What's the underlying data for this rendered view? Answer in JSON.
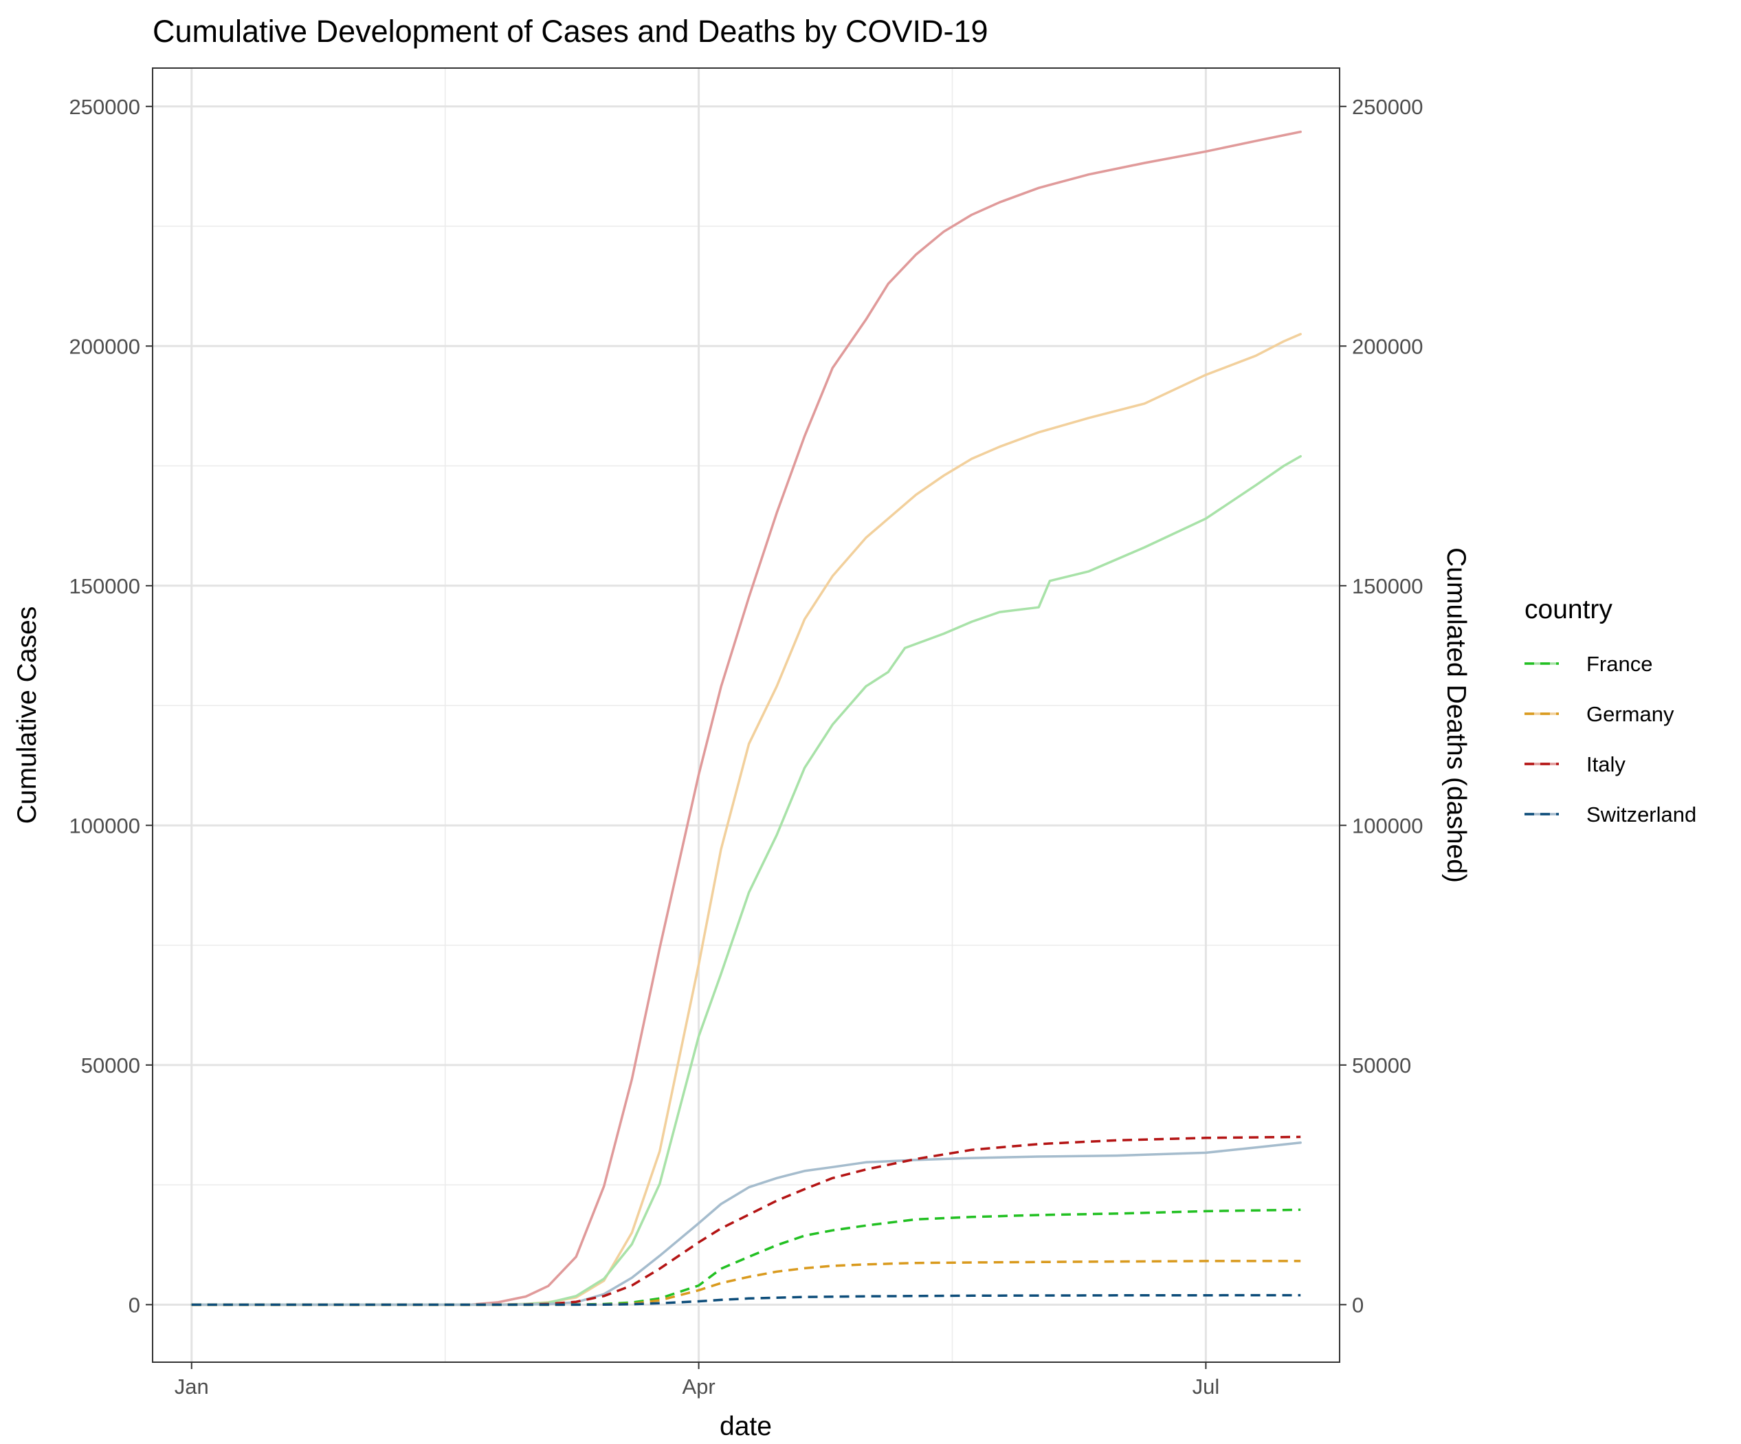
{
  "chart_data": {
    "type": "line",
    "title": "Cumulative Development of Cases and Deaths by COVID-19",
    "xlabel": "date",
    "ylabel": "Cumulative Cases",
    "y2label": "Cumulated Deaths (dashed)",
    "x_ticks": [
      {
        "label": "Jan",
        "date": "2020-01-01"
      },
      {
        "label": "Apr",
        "date": "2020-04-01"
      },
      {
        "label": "Jul",
        "date": "2020-07-01"
      }
    ],
    "x_range": [
      "2019-12-25",
      "2020-07-25"
    ],
    "ylim": [
      -12000,
      258000
    ],
    "y_ticks": [
      0,
      50000,
      100000,
      150000,
      200000,
      250000
    ],
    "y2_ticks": [
      0,
      50000,
      100000,
      150000,
      200000,
      250000
    ],
    "grid": true,
    "legend": {
      "title": "country",
      "position": "right",
      "entries": [
        "France",
        "Germany",
        "Italy",
        "Switzerland"
      ]
    },
    "colors": {
      "France": "#22c022",
      "Germany": "#d99a1e",
      "Italy": "#b41414",
      "Switzerland": "#0d4d7a",
      "France_cases": "#a8e2a8",
      "Germany_cases": "#f2d09c",
      "Italy_cases": "#e09a9a",
      "Switzerland_cases": "#a5bccd"
    },
    "series": [
      {
        "name": "Italy",
        "metric": "cases",
        "style": "solid",
        "points": [
          [
            "2020-01-01",
            0
          ],
          [
            "2020-02-20",
            0
          ],
          [
            "2020-02-25",
            500
          ],
          [
            "2020-03-01",
            1700
          ],
          [
            "2020-03-05",
            3900
          ],
          [
            "2020-03-10",
            10000
          ],
          [
            "2020-03-15",
            24700
          ],
          [
            "2020-03-20",
            47000
          ],
          [
            "2020-03-25",
            74400
          ],
          [
            "2020-04-01",
            110600
          ],
          [
            "2020-04-05",
            128900
          ],
          [
            "2020-04-10",
            147600
          ],
          [
            "2020-04-15",
            165200
          ],
          [
            "2020-04-20",
            181200
          ],
          [
            "2020-04-25",
            195400
          ],
          [
            "2020-05-01",
            205500
          ],
          [
            "2020-05-05",
            213000
          ],
          [
            "2020-05-10",
            219100
          ],
          [
            "2020-05-15",
            223900
          ],
          [
            "2020-05-20",
            227400
          ],
          [
            "2020-05-25",
            230000
          ],
          [
            "2020-06-01",
            233000
          ],
          [
            "2020-06-10",
            235800
          ],
          [
            "2020-06-20",
            238200
          ],
          [
            "2020-07-01",
            240600
          ],
          [
            "2020-07-10",
            242800
          ],
          [
            "2020-07-15",
            244000
          ],
          [
            "2020-07-18",
            244700
          ]
        ]
      },
      {
        "name": "Germany",
        "metric": "cases",
        "style": "solid",
        "points": [
          [
            "2020-01-01",
            0
          ],
          [
            "2020-02-24",
            0
          ],
          [
            "2020-03-01",
            150
          ],
          [
            "2020-03-05",
            500
          ],
          [
            "2020-03-10",
            1500
          ],
          [
            "2020-03-15",
            5000
          ],
          [
            "2020-03-20",
            15000
          ],
          [
            "2020-03-25",
            32000
          ],
          [
            "2020-04-01",
            71000
          ],
          [
            "2020-04-05",
            95000
          ],
          [
            "2020-04-10",
            117000
          ],
          [
            "2020-04-15",
            129000
          ],
          [
            "2020-04-20",
            143000
          ],
          [
            "2020-04-25",
            152000
          ],
          [
            "2020-05-01",
            160000
          ],
          [
            "2020-05-05",
            164000
          ],
          [
            "2020-05-10",
            169000
          ],
          [
            "2020-05-15",
            173000
          ],
          [
            "2020-05-20",
            176500
          ],
          [
            "2020-05-25",
            179000
          ],
          [
            "2020-06-01",
            182000
          ],
          [
            "2020-06-10",
            185000
          ],
          [
            "2020-06-20",
            188000
          ],
          [
            "2020-07-01",
            194000
          ],
          [
            "2020-07-10",
            198000
          ],
          [
            "2020-07-15",
            201000
          ],
          [
            "2020-07-18",
            202500
          ]
        ]
      },
      {
        "name": "France",
        "metric": "cases",
        "style": "solid",
        "points": [
          [
            "2020-01-01",
            0
          ],
          [
            "2020-02-26",
            0
          ],
          [
            "2020-03-01",
            130
          ],
          [
            "2020-03-05",
            400
          ],
          [
            "2020-03-10",
            1800
          ],
          [
            "2020-03-15",
            5400
          ],
          [
            "2020-03-20",
            12600
          ],
          [
            "2020-03-25",
            25200
          ],
          [
            "2020-04-01",
            56000
          ],
          [
            "2020-04-05",
            69000
          ],
          [
            "2020-04-10",
            86000
          ],
          [
            "2020-04-15",
            98000
          ],
          [
            "2020-04-20",
            112000
          ],
          [
            "2020-04-25",
            121000
          ],
          [
            "2020-05-01",
            129000
          ],
          [
            "2020-05-05",
            132000
          ],
          [
            "2020-05-08",
            137000
          ],
          [
            "2020-05-15",
            140000
          ],
          [
            "2020-05-20",
            142500
          ],
          [
            "2020-05-25",
            144500
          ],
          [
            "2020-06-01",
            145500
          ],
          [
            "2020-06-03",
            151000
          ],
          [
            "2020-06-10",
            153000
          ],
          [
            "2020-06-20",
            158000
          ],
          [
            "2020-07-01",
            164000
          ],
          [
            "2020-07-10",
            171000
          ],
          [
            "2020-07-15",
            175000
          ],
          [
            "2020-07-18",
            177000
          ]
        ]
      },
      {
        "name": "Switzerland",
        "metric": "cases",
        "style": "solid",
        "points": [
          [
            "2020-01-01",
            0
          ],
          [
            "2020-02-27",
            0
          ],
          [
            "2020-03-01",
            30
          ],
          [
            "2020-03-05",
            110
          ],
          [
            "2020-03-10",
            500
          ],
          [
            "2020-03-15",
            2200
          ],
          [
            "2020-03-20",
            5600
          ],
          [
            "2020-03-25",
            10200
          ],
          [
            "2020-04-01",
            17000
          ],
          [
            "2020-04-05",
            21000
          ],
          [
            "2020-04-10",
            24500
          ],
          [
            "2020-04-15",
            26400
          ],
          [
            "2020-04-20",
            27900
          ],
          [
            "2020-04-25",
            28700
          ],
          [
            "2020-05-01",
            29700
          ],
          [
            "2020-05-10",
            30200
          ],
          [
            "2020-05-20",
            30600
          ],
          [
            "2020-06-01",
            30900
          ],
          [
            "2020-06-15",
            31100
          ],
          [
            "2020-07-01",
            31700
          ],
          [
            "2020-07-10",
            32800
          ],
          [
            "2020-07-18",
            33800
          ]
        ]
      },
      {
        "name": "Italy",
        "metric": "deaths",
        "style": "dashed",
        "points": [
          [
            "2020-01-01",
            0
          ],
          [
            "2020-02-23",
            0
          ],
          [
            "2020-03-01",
            40
          ],
          [
            "2020-03-05",
            150
          ],
          [
            "2020-03-10",
            600
          ],
          [
            "2020-03-15",
            1800
          ],
          [
            "2020-03-20",
            4000
          ],
          [
            "2020-03-25",
            7500
          ],
          [
            "2020-04-01",
            13000
          ],
          [
            "2020-04-05",
            15900
          ],
          [
            "2020-04-10",
            18800
          ],
          [
            "2020-04-15",
            21700
          ],
          [
            "2020-04-20",
            24100
          ],
          [
            "2020-04-25",
            26400
          ],
          [
            "2020-05-01",
            28200
          ],
          [
            "2020-05-10",
            30400
          ],
          [
            "2020-05-20",
            32300
          ],
          [
            "2020-06-01",
            33500
          ],
          [
            "2020-06-15",
            34300
          ],
          [
            "2020-07-01",
            34800
          ],
          [
            "2020-07-18",
            35000
          ]
        ]
      },
      {
        "name": "France",
        "metric": "deaths",
        "style": "dashed",
        "points": [
          [
            "2020-01-01",
            0
          ],
          [
            "2020-03-05",
            0
          ],
          [
            "2020-03-10",
            30
          ],
          [
            "2020-03-15",
            120
          ],
          [
            "2020-03-20",
            450
          ],
          [
            "2020-03-25",
            1300
          ],
          [
            "2020-04-01",
            4000
          ],
          [
            "2020-04-05",
            7500
          ],
          [
            "2020-04-10",
            10000
          ],
          [
            "2020-04-15",
            12400
          ],
          [
            "2020-04-20",
            14400
          ],
          [
            "2020-04-25",
            15500
          ],
          [
            "2020-05-01",
            16500
          ],
          [
            "2020-05-10",
            17800
          ],
          [
            "2020-05-20",
            18300
          ],
          [
            "2020-06-01",
            18700
          ],
          [
            "2020-06-15",
            19000
          ],
          [
            "2020-07-01",
            19500
          ],
          [
            "2020-07-18",
            19800
          ]
        ]
      },
      {
        "name": "Germany",
        "metric": "deaths",
        "style": "dashed",
        "points": [
          [
            "2020-01-01",
            0
          ],
          [
            "2020-03-08",
            0
          ],
          [
            "2020-03-15",
            40
          ],
          [
            "2020-03-20",
            200
          ],
          [
            "2020-03-25",
            900
          ],
          [
            "2020-04-01",
            3000
          ],
          [
            "2020-04-05",
            4500
          ],
          [
            "2020-04-10",
            5800
          ],
          [
            "2020-04-15",
            6900
          ],
          [
            "2020-04-20",
            7600
          ],
          [
            "2020-04-25",
            8100
          ],
          [
            "2020-05-01",
            8400
          ],
          [
            "2020-05-10",
            8700
          ],
          [
            "2020-05-20",
            8800
          ],
          [
            "2020-06-01",
            8900
          ],
          [
            "2020-06-15",
            9000
          ],
          [
            "2020-07-01",
            9100
          ],
          [
            "2020-07-18",
            9100
          ]
        ]
      },
      {
        "name": "Switzerland",
        "metric": "deaths",
        "style": "dashed",
        "points": [
          [
            "2020-01-01",
            0
          ],
          [
            "2020-03-10",
            0
          ],
          [
            "2020-03-15",
            15
          ],
          [
            "2020-03-20",
            90
          ],
          [
            "2020-03-25",
            300
          ],
          [
            "2020-04-01",
            700
          ],
          [
            "2020-04-05",
            1000
          ],
          [
            "2020-04-10",
            1300
          ],
          [
            "2020-04-20",
            1600
          ],
          [
            "2020-05-01",
            1750
          ],
          [
            "2020-05-20",
            1880
          ],
          [
            "2020-06-15",
            1950
          ],
          [
            "2020-07-18",
            1980
          ]
        ]
      }
    ]
  }
}
